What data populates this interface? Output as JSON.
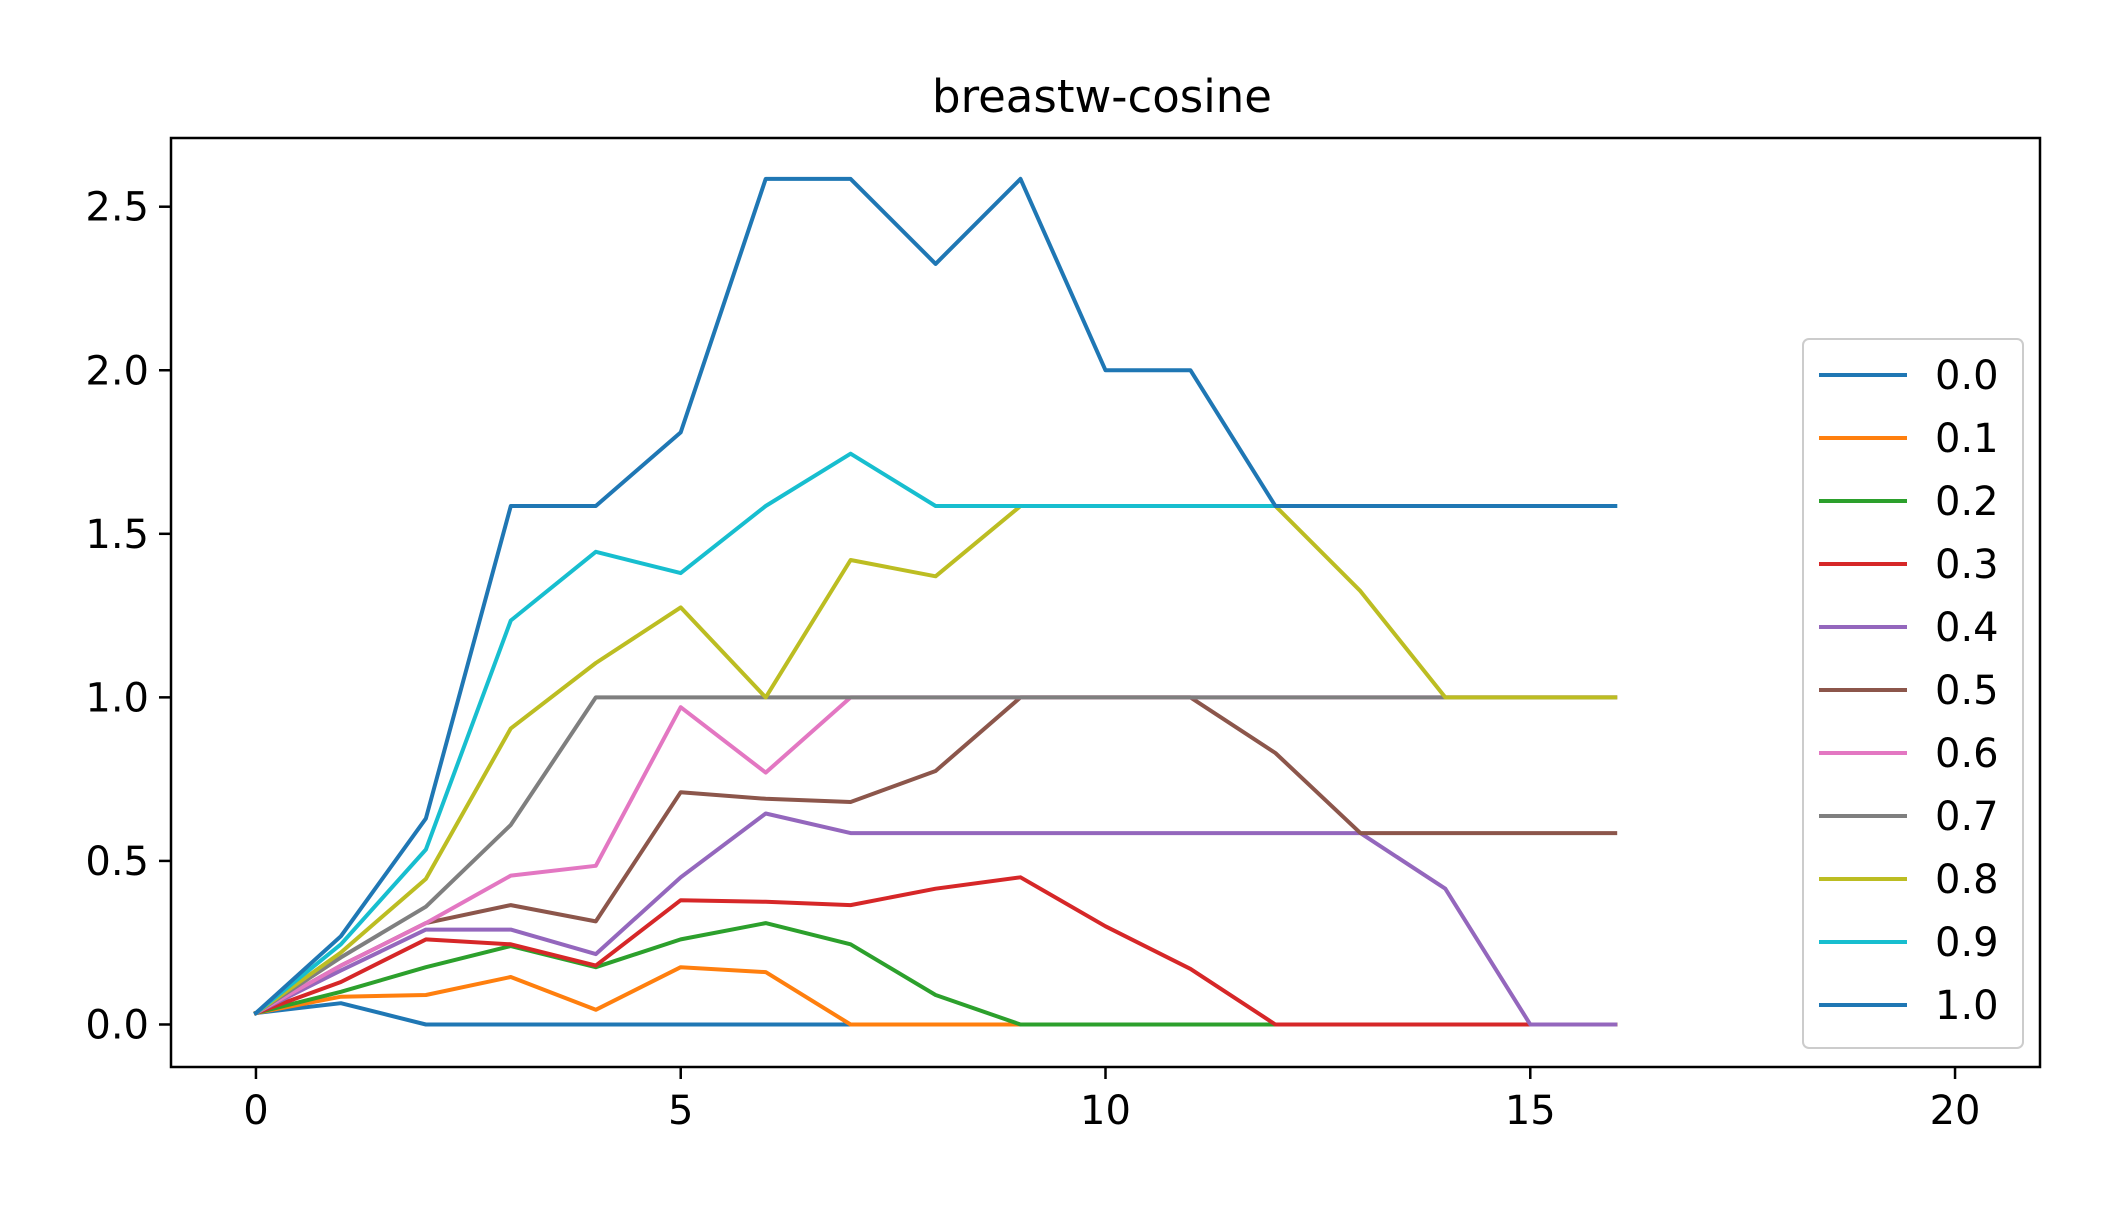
{
  "chart_data": {
    "type": "line",
    "title": "breastw-cosine",
    "xlabel": "",
    "ylabel": "",
    "xlim": [
      -1,
      21
    ],
    "ylim": [
      -0.13,
      2.71
    ],
    "xticks": [
      0,
      5,
      10,
      15,
      20
    ],
    "xtick_labels": [
      "0",
      "5",
      "10",
      "15",
      "20"
    ],
    "yticks": [
      0.0,
      0.5,
      1.0,
      1.5,
      2.0,
      2.5
    ],
    "ytick_labels": [
      "0.0",
      "0.5",
      "1.0",
      "1.5",
      "2.0",
      "2.5"
    ],
    "grid": false,
    "legend_position": "center-right",
    "x": [
      0,
      1,
      2,
      3,
      4,
      5,
      6,
      7,
      8,
      9,
      10,
      11,
      12,
      13,
      14,
      15,
      16
    ],
    "series": [
      {
        "name": "0.0",
        "color": "#1f77b4",
        "values": [
          0.035,
          0.065,
          0.0,
          0.0,
          0.0,
          0.0,
          0.0,
          0.0,
          0.0,
          0.0,
          0.0,
          0.0,
          0.0,
          0.0,
          0.0,
          0.0,
          0.0
        ]
      },
      {
        "name": "0.1",
        "color": "#ff7f0e",
        "values": [
          0.035,
          0.085,
          0.09,
          0.145,
          0.045,
          0.175,
          0.16,
          0.0,
          0.0,
          0.0,
          0.0,
          0.0,
          0.0,
          0.0,
          0.0,
          0.0,
          0.0
        ]
      },
      {
        "name": "0.2",
        "color": "#2ca02c",
        "values": [
          0.035,
          0.1,
          0.175,
          0.24,
          0.175,
          0.26,
          0.31,
          0.245,
          0.09,
          0.0,
          0.0,
          0.0,
          0.0,
          0.0,
          0.0,
          0.0,
          0.0
        ]
      },
      {
        "name": "0.3",
        "color": "#d62728",
        "values": [
          0.035,
          0.13,
          0.26,
          0.245,
          0.18,
          0.38,
          0.375,
          0.365,
          0.415,
          0.45,
          0.3,
          0.17,
          0.0,
          0.0,
          0.0,
          0.0,
          0.0
        ]
      },
      {
        "name": "0.4",
        "color": "#9467bd",
        "values": [
          0.035,
          0.165,
          0.29,
          0.29,
          0.215,
          0.45,
          0.645,
          0.585,
          0.585,
          0.585,
          0.585,
          0.585,
          0.585,
          0.585,
          0.415,
          0.0,
          0.0
        ]
      },
      {
        "name": "0.5",
        "color": "#8c564b",
        "values": [
          0.035,
          0.18,
          0.31,
          0.365,
          0.315,
          0.71,
          0.69,
          0.68,
          0.775,
          1.0,
          1.0,
          1.0,
          0.83,
          0.585,
          0.585,
          0.585,
          0.585
        ]
      },
      {
        "name": "0.6",
        "color": "#e377c2",
        "values": [
          0.035,
          0.18,
          0.31,
          0.455,
          0.485,
          0.97,
          0.77,
          1.0,
          1.0,
          1.0,
          1.0,
          1.0,
          1.0,
          1.0,
          1.0,
          1.0,
          1.0
        ]
      },
      {
        "name": "0.7",
        "color": "#7f7f7f",
        "values": [
          0.035,
          0.205,
          0.36,
          0.61,
          1.0,
          1.0,
          1.0,
          1.0,
          1.0,
          1.0,
          1.0,
          1.0,
          1.0,
          1.0,
          1.0,
          1.0,
          1.0
        ]
      },
      {
        "name": "0.8",
        "color": "#bcbd22",
        "values": [
          0.035,
          0.22,
          0.445,
          0.905,
          1.105,
          1.275,
          1.0,
          1.42,
          1.37,
          1.585,
          1.585,
          1.585,
          1.585,
          1.325,
          1.0,
          1.0,
          1.0
        ]
      },
      {
        "name": "0.9",
        "color": "#17becf",
        "values": [
          0.035,
          0.245,
          0.535,
          1.235,
          1.445,
          1.38,
          1.585,
          1.745,
          1.585,
          1.585,
          1.585,
          1.585,
          1.585,
          1.585,
          1.585,
          1.585,
          1.585
        ]
      },
      {
        "name": "1.0",
        "color": "#1f77b4",
        "values": [
          0.035,
          0.27,
          0.63,
          1.585,
          1.585,
          1.81,
          2.585,
          2.585,
          2.325,
          2.585,
          2.0,
          2.0,
          1.585,
          1.585,
          1.585,
          1.585,
          1.585
        ]
      }
    ]
  }
}
